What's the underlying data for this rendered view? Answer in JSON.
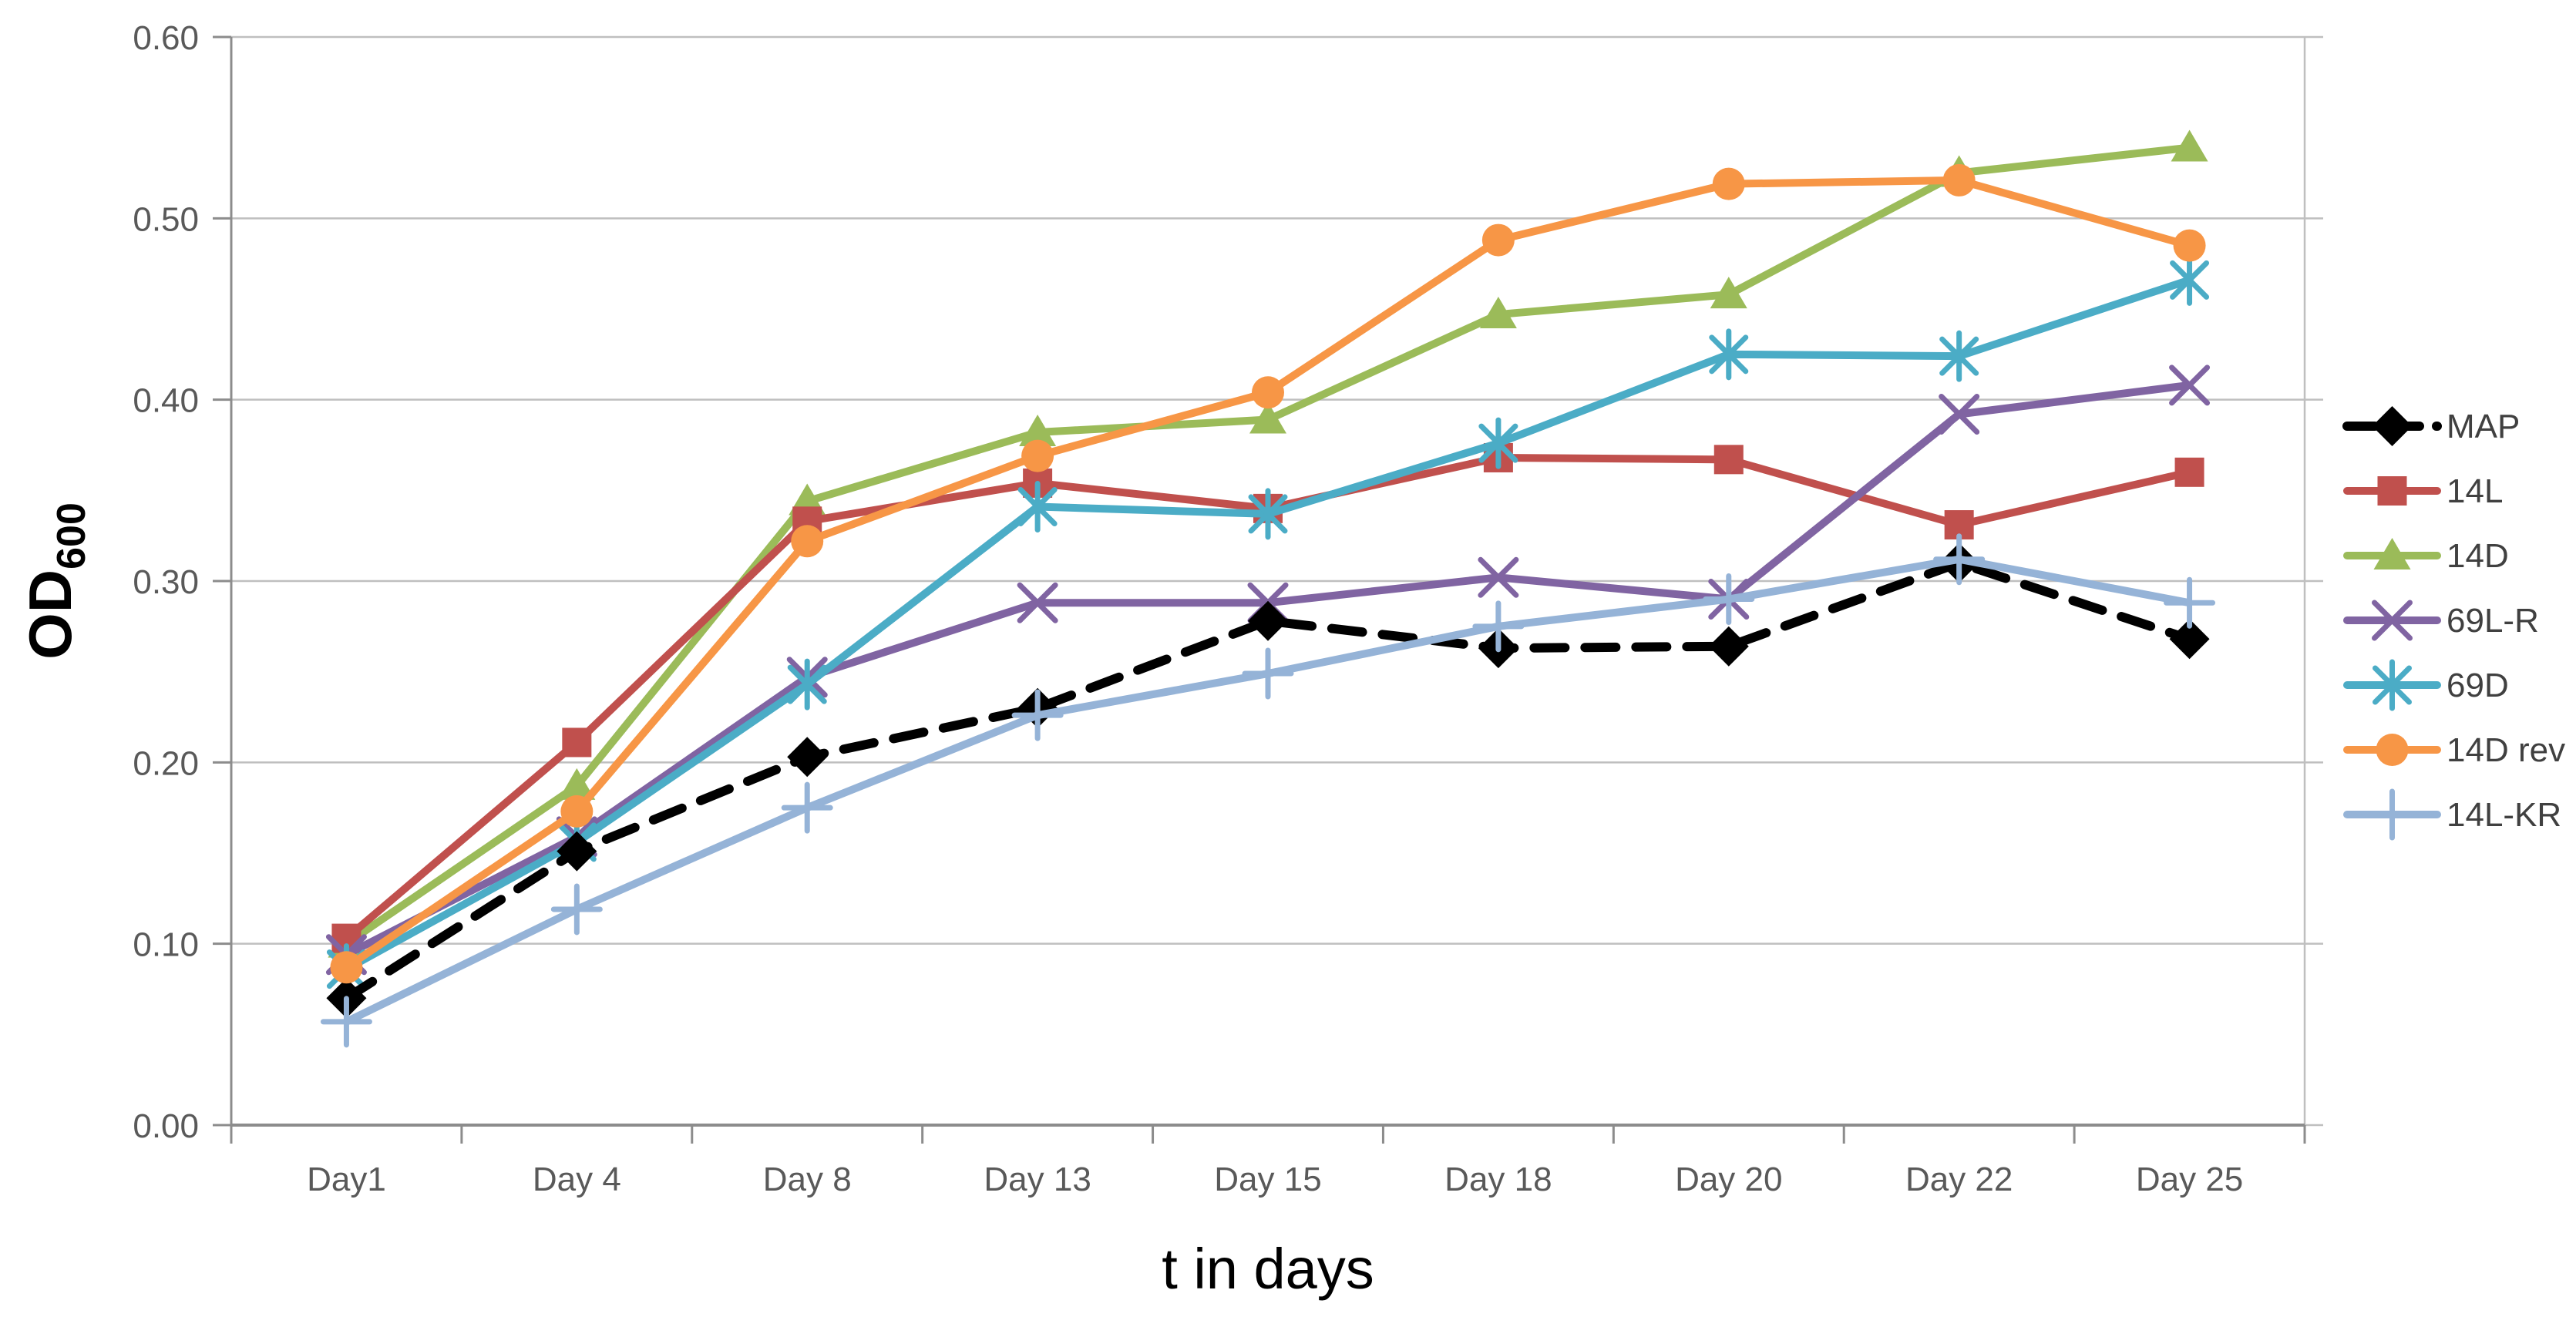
{
  "chart_data": {
    "type": "line",
    "title": "",
    "xlabel": "t in days",
    "ylabel": "OD",
    "ylabel_subscript": "600",
    "categories": [
      "Day1",
      "Day 4",
      "Day 8",
      "Day 13",
      "Day 15",
      "Day 18",
      "Day 20",
      "Day 22",
      "Day 25"
    ],
    "ylim": [
      0,
      0.6
    ],
    "ytick_step": 0.1,
    "ytick_labels": [
      "0.00",
      "0.10",
      "0.20",
      "0.30",
      "0.40",
      "0.50",
      "0.60"
    ],
    "grid": true,
    "legend_position": "right",
    "axis_color": "#8c8c8c",
    "gridline_color": "#bfbfbf",
    "tick_label_color": "#595959",
    "legend_label_color": "#404040",
    "series": [
      {
        "name": "MAP",
        "color": "#000000",
        "marker": "diamond",
        "line_style": "dashed",
        "values": [
          0.07,
          0.151,
          0.203,
          0.23,
          0.278,
          0.263,
          0.264,
          0.31,
          0.268
        ]
      },
      {
        "name": "14L",
        "color": "#C0504D",
        "marker": "square",
        "line_style": "solid",
        "values": [
          0.103,
          0.211,
          0.333,
          0.354,
          0.34,
          0.368,
          0.367,
          0.331,
          0.36
        ]
      },
      {
        "name": "14D",
        "color": "#9BBB59",
        "marker": "triangle",
        "line_style": "solid",
        "values": [
          0.1,
          0.187,
          0.344,
          0.382,
          0.389,
          0.447,
          0.458,
          0.525,
          0.539
        ]
      },
      {
        "name": "69L-R",
        "color": "#8064A2",
        "marker": "x",
        "line_style": "solid",
        "values": [
          0.094,
          0.159,
          0.247,
          0.288,
          0.288,
          0.302,
          0.29,
          0.392,
          0.408
        ]
      },
      {
        "name": "69D",
        "color": "#4BACC6",
        "marker": "asterisk",
        "line_style": "solid",
        "values": [
          0.086,
          0.156,
          0.243,
          0.341,
          0.337,
          0.376,
          0.425,
          0.424,
          0.466
        ]
      },
      {
        "name": "14D rev",
        "color": "#F79646",
        "marker": "circle",
        "line_style": "solid",
        "values": [
          0.087,
          0.173,
          0.322,
          0.369,
          0.404,
          0.488,
          0.519,
          0.521,
          0.485
        ]
      },
      {
        "name": "14L-KR",
        "color": "#95B3D7",
        "marker": "plus",
        "line_style": "solid",
        "values": [
          0.057,
          0.119,
          0.175,
          0.226,
          0.249,
          0.275,
          0.29,
          0.312,
          0.288
        ]
      }
    ],
    "draw_order": [
      2,
      1,
      3,
      4,
      0,
      5,
      6
    ]
  }
}
